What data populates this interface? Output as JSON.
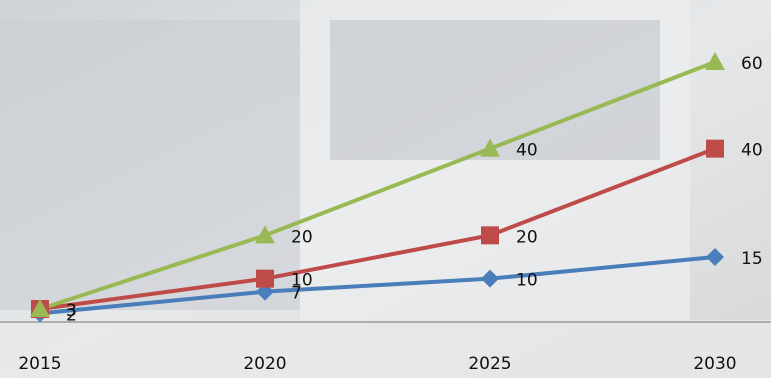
{
  "chart_data": {
    "type": "line",
    "categories": [
      "2015",
      "2020",
      "2025",
      "2030"
    ],
    "series": [
      {
        "name": "Blue",
        "color": "#4a7ebb",
        "marker": "diamond",
        "values": [
          2,
          7,
          10,
          15
        ]
      },
      {
        "name": "Red",
        "color": "#be4b48",
        "marker": "square",
        "values": [
          3,
          10,
          20,
          40
        ]
      },
      {
        "name": "Green",
        "color": "#98b954",
        "marker": "triangle",
        "values": [
          3,
          20,
          40,
          60
        ]
      }
    ],
    "ylim": [
      0,
      60
    ]
  }
}
